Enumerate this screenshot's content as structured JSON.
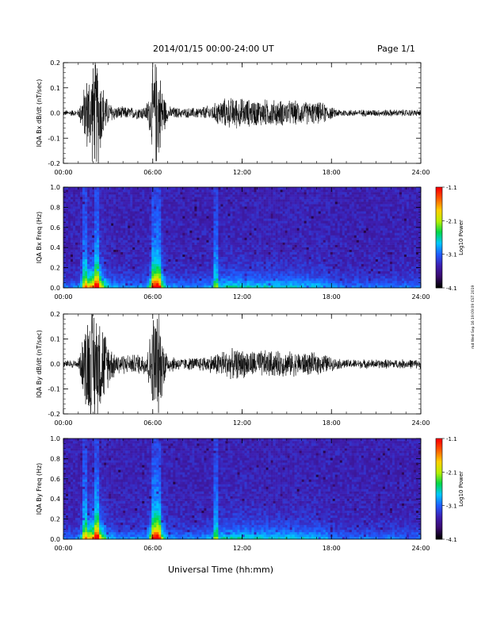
{
  "header": {
    "title": "2014/01/15  00:00-24:00 UT",
    "page": "Page 1/1"
  },
  "footer": {
    "xlabel": "Universal Time (hh:mm)",
    "side_stamp": "rkd Wed Sep 16 19:09:09 CST 2019"
  },
  "colors": {
    "background": "#ffffff",
    "trace": "#000000",
    "colormap": [
      "#000000",
      "#3a0a6e",
      "#3d1fb2",
      "#1f5cff",
      "#00c8ff",
      "#00d84a",
      "#b8f000",
      "#ffd000",
      "#ff6000",
      "#ff0000"
    ]
  },
  "chart_data": [
    {
      "type": "line",
      "ylabel": "IQA Bx dB/dt (nT/sec)",
      "x_ticks": [
        "00:00",
        "06:00",
        "12:00",
        "18:00",
        "24:00"
      ],
      "y_ticks": [
        "-0.2",
        "-0.1",
        "0.0",
        "0.1",
        "0.2"
      ],
      "xlim": [
        0,
        24
      ],
      "ylim": [
        -0.2,
        0.2
      ],
      "envelope": {
        "hours": [
          0,
          1,
          1.3,
          1.6,
          2.0,
          2.3,
          2.6,
          3.0,
          3.5,
          4.5,
          5.5,
          5.8,
          6.0,
          6.3,
          6.7,
          7.0,
          8.0,
          9.0,
          10.0,
          10.5,
          11.5,
          12.5,
          13.5,
          15.0,
          16.5,
          17.5,
          18.2,
          19.0,
          21.0,
          24.0
        ],
        "amplitude": [
          0.012,
          0.015,
          0.09,
          0.17,
          0.22,
          0.25,
          0.14,
          0.05,
          0.03,
          0.025,
          0.03,
          0.09,
          0.2,
          0.25,
          0.1,
          0.03,
          0.02,
          0.025,
          0.035,
          0.06,
          0.07,
          0.06,
          0.06,
          0.055,
          0.05,
          0.045,
          0.02,
          0.015,
          0.015,
          0.015
        ]
      }
    },
    {
      "type": "heatmap",
      "ylabel": "IQA Bx Freq (Hz)",
      "x_ticks": [
        "00:00",
        "06:00",
        "12:00",
        "18:00",
        "24:00"
      ],
      "y_ticks": [
        "0.0",
        "0.2",
        "0.4",
        "0.6",
        "0.8",
        "1.0"
      ],
      "xlim": [
        0,
        24
      ],
      "ylim": [
        0,
        1.0
      ],
      "colorbar": {
        "label": "Log10 Power",
        "ticks": [
          "-1.1",
          "-2.1",
          "-3.1",
          "-4.1"
        ],
        "range": [
          -4.1,
          -1.1
        ]
      },
      "bright_columns_hours": [
        1.4,
        2.3,
        6.1,
        6.4,
        10.3
      ]
    },
    {
      "type": "line",
      "ylabel": "IQA By dB/dt (nT/sec)",
      "x_ticks": [
        "00:00",
        "06:00",
        "12:00",
        "18:00",
        "24:00"
      ],
      "y_ticks": [
        "-0.2",
        "-0.1",
        "0.0",
        "0.1",
        "0.2"
      ],
      "xlim": [
        0,
        24
      ],
      "ylim": [
        -0.2,
        0.2
      ],
      "envelope": {
        "hours": [
          0,
          1,
          1.3,
          1.6,
          2.0,
          2.3,
          2.6,
          3.0,
          3.5,
          4.5,
          5.5,
          5.8,
          6.0,
          6.3,
          6.7,
          7.0,
          8.0,
          9.0,
          10.0,
          10.5,
          11.5,
          12.5,
          13.5,
          15.0,
          16.5,
          17.5,
          18.2,
          19.0,
          21.0,
          24.0
        ],
        "amplitude": [
          0.015,
          0.02,
          0.12,
          0.24,
          0.26,
          0.25,
          0.2,
          0.1,
          0.05,
          0.04,
          0.05,
          0.12,
          0.22,
          0.26,
          0.12,
          0.04,
          0.025,
          0.03,
          0.04,
          0.06,
          0.065,
          0.06,
          0.06,
          0.055,
          0.05,
          0.045,
          0.025,
          0.02,
          0.02,
          0.02
        ]
      }
    },
    {
      "type": "heatmap",
      "ylabel": "IQA By Freq (Hz)",
      "x_ticks": [
        "00:00",
        "06:00",
        "12:00",
        "18:00",
        "24:00"
      ],
      "y_ticks": [
        "0.0",
        "0.2",
        "0.4",
        "0.6",
        "0.8",
        "1.0"
      ],
      "xlim": [
        0,
        24
      ],
      "ylim": [
        0,
        1.0
      ],
      "colorbar": {
        "label": "Log10 Power",
        "ticks": [
          "-1.1",
          "-2.1",
          "-3.1",
          "-4.1"
        ],
        "range": [
          -4.1,
          -1.1
        ]
      },
      "bright_columns_hours": [
        1.4,
        2.3,
        6.1,
        6.4,
        10.3
      ]
    }
  ]
}
